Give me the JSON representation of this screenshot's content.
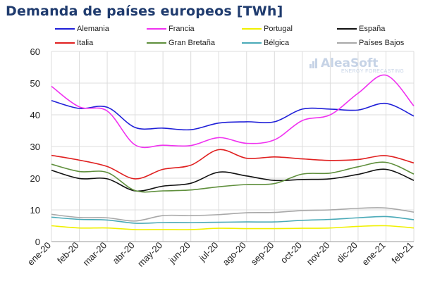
{
  "title": "Demanda de países europeos [TWh]",
  "logo": {
    "name": "AleaSoft",
    "sub": "ENERGY FORECASTING",
    "color": "#c6d3e6"
  },
  "chart_data": {
    "type": "line",
    "title": "Demanda de países europeos [TWh]",
    "xlabel": "",
    "ylabel": "",
    "ylim": [
      0,
      60
    ],
    "yticks": [
      0,
      10,
      20,
      30,
      40,
      50,
      60
    ],
    "grid": true,
    "legend_position": "top",
    "categories": [
      "ene-20",
      "feb-20",
      "mar-20",
      "abr-20",
      "may-20",
      "jun-20",
      "jul-20",
      "ago-20",
      "sep-20",
      "oct-20",
      "nov-20",
      "dic-20",
      "ene-21",
      "feb-21"
    ],
    "series": [
      {
        "name": "Alemania",
        "color": "#1f1fd8",
        "values": [
          44.5,
          42,
          42.4,
          36,
          35.8,
          35.3,
          37.4,
          37.8,
          37.8,
          41.8,
          41.8,
          41.5,
          43.6,
          39.6
        ]
      },
      {
        "name": "Francia",
        "color": "#f032f0",
        "values": [
          49,
          42.5,
          41.2,
          30.5,
          30.4,
          30.3,
          32.8,
          31,
          32.1,
          38.2,
          40,
          46.8,
          52.5,
          42.8
        ]
      },
      {
        "name": "Portugal",
        "color": "#f0f000",
        "values": [
          5,
          4.3,
          4.3,
          3.8,
          3.8,
          3.8,
          4.2,
          4.1,
          4.1,
          4.2,
          4.3,
          4.8,
          5,
          4.3
        ]
      },
      {
        "name": "España",
        "color": "#111111",
        "values": [
          22.5,
          19.9,
          19.8,
          16,
          17.5,
          18.4,
          21.9,
          20.7,
          19.3,
          19.6,
          19.8,
          21.2,
          22.8,
          19.3
        ]
      },
      {
        "name": "Italia",
        "color": "#e02020",
        "values": [
          27.2,
          25.7,
          23.7,
          19.8,
          22.8,
          24.1,
          29,
          26.3,
          26.7,
          26.1,
          25.6,
          25.9,
          27.1,
          24.8
        ]
      },
      {
        "name": "Gran Bretaña",
        "color": "#5f8f3c",
        "values": [
          24.4,
          22.1,
          21.8,
          16.1,
          16,
          16.3,
          17.3,
          18,
          18.3,
          21.3,
          21.6,
          23.6,
          25,
          21.3
        ]
      },
      {
        "name": "Bélgica",
        "color": "#4aaab8",
        "values": [
          7.7,
          7,
          6.8,
          5.8,
          6,
          6,
          6.1,
          6.2,
          6.2,
          6.7,
          7,
          7.5,
          7.9,
          6.9
        ]
      },
      {
        "name": "Países Bajos",
        "color": "#a8a8a8",
        "values": [
          8.6,
          7.6,
          7.5,
          6.5,
          8.2,
          8.2,
          8.5,
          9.1,
          9.2,
          9.8,
          10,
          10.5,
          10.6,
          9.3
        ]
      }
    ]
  }
}
